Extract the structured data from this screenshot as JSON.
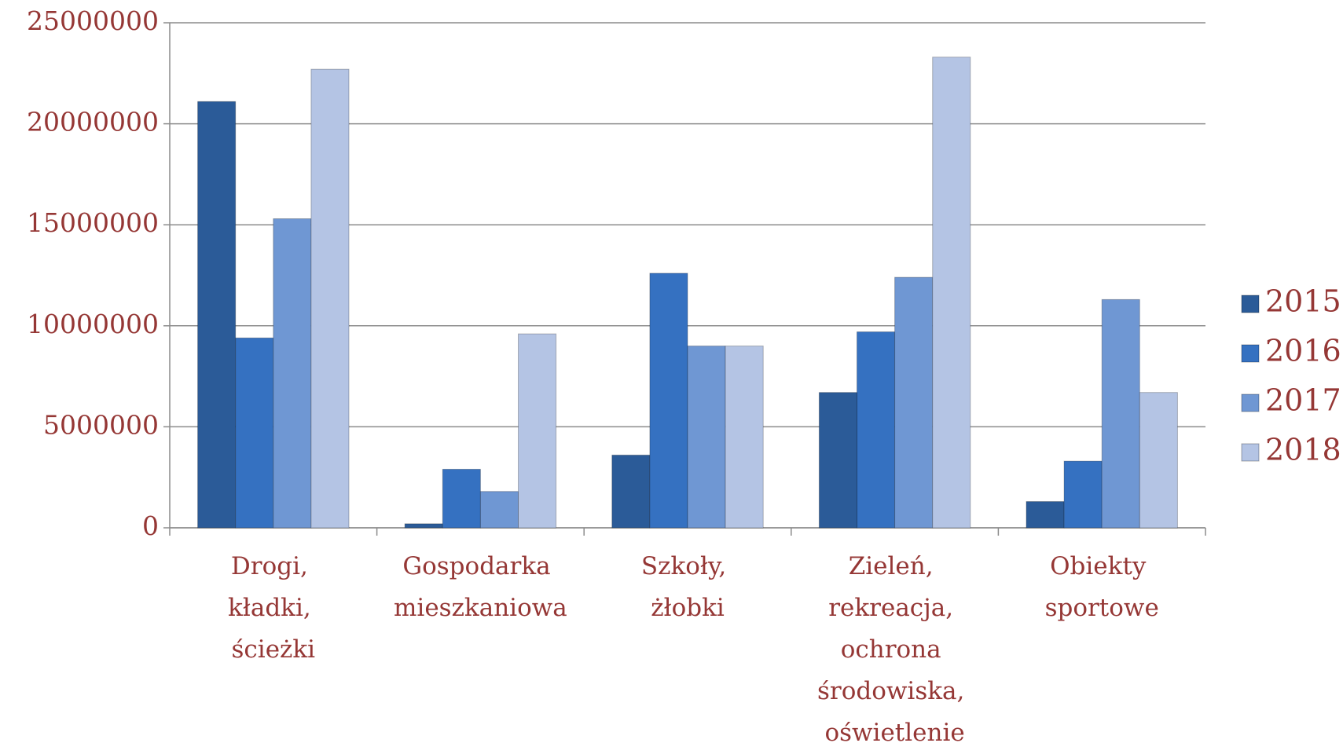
{
  "chart_data": {
    "type": "bar",
    "categories": [
      "Drogi, kładki, ścieżki",
      "Gospodarka mieszkaniowa",
      "Szkoły, żłobki",
      "Zieleń, rekreacja, ochrona środowiska, oświetlenie",
      "Obiekty sportowe"
    ],
    "series": [
      {
        "name": "2015",
        "color": "#2b5b98",
        "values": [
          21100000,
          200000,
          3600000,
          6700000,
          1300000
        ]
      },
      {
        "name": "2016",
        "color": "#3571c1",
        "values": [
          9400000,
          2900000,
          12600000,
          9700000,
          3300000
        ]
      },
      {
        "name": "2017",
        "color": "#6f97d3",
        "values": [
          15300000,
          1800000,
          9000000,
          12400000,
          11300000
        ]
      },
      {
        "name": "2018",
        "color": "#b4c4e4",
        "values": [
          22700000,
          9600000,
          9000000,
          23300000,
          6700000
        ]
      }
    ],
    "ylim": [
      0,
      25000000
    ],
    "yticks": [
      0,
      5000000,
      10000000,
      15000000,
      20000000,
      25000000
    ],
    "grid": true,
    "legend": "right"
  }
}
